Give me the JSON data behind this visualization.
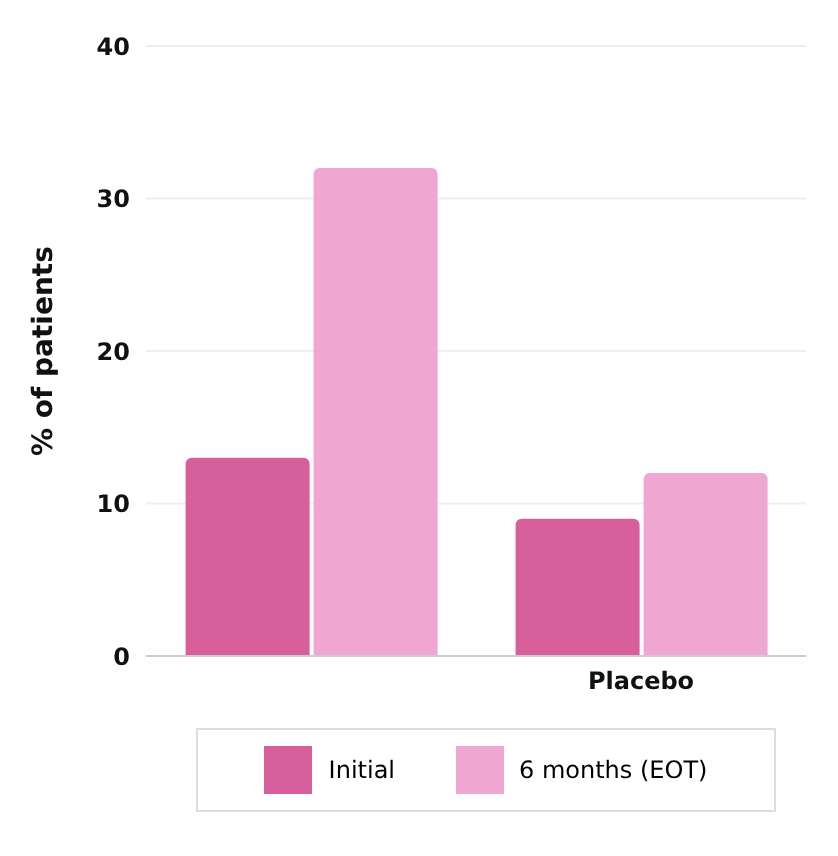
{
  "chart_data": {
    "type": "bar",
    "ylabel": "% of patients",
    "categories": [
      null,
      "Placebo"
    ],
    "series": [
      {
        "name": "Initial",
        "color": "#d75f9b",
        "values": [
          13,
          9
        ]
      },
      {
        "name": "6 months (EOT)",
        "color": "#efa6d1",
        "values": [
          32,
          12
        ]
      }
    ],
    "ylim": [
      0,
      40
    ],
    "yticks": [
      0,
      10,
      20,
      30,
      40
    ],
    "grid": "y",
    "legend": "bottom"
  }
}
